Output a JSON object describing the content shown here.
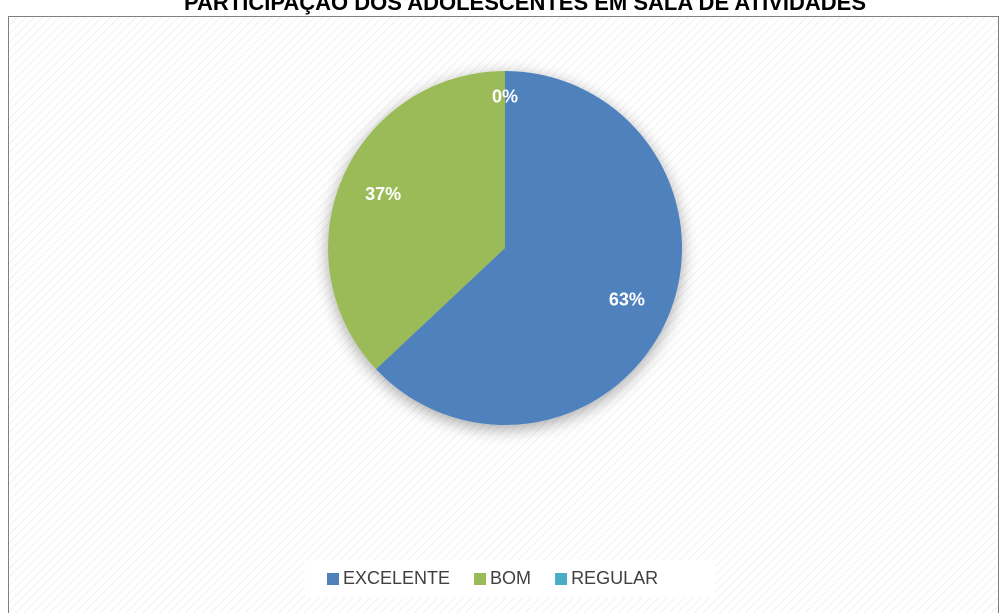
{
  "chart_data": {
    "type": "pie",
    "title": "PARTICIPAÇÃO DOS ADOLESCENTES EM SALA DE ATIVIDADES",
    "categories": [
      "EXCELENTE",
      "BOM",
      "REGULAR"
    ],
    "values": [
      63,
      37,
      0
    ],
    "value_labels": [
      "63%",
      "37%",
      "0%"
    ],
    "colors": [
      "#4f81bd",
      "#9bbb59",
      "#4bacc6"
    ],
    "legend": "bottom"
  }
}
